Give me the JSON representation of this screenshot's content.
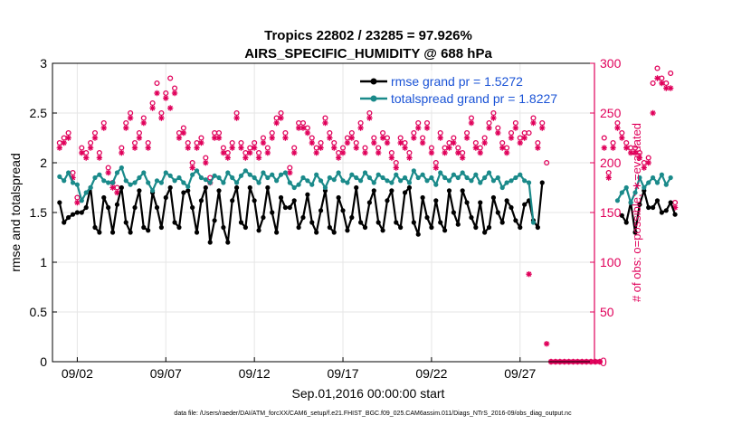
{
  "chart_data": {
    "type": "line",
    "title_line1": "Tropics 22802 / 23285 = 97.926%",
    "title_line2": "AIRS_SPECIFIC_HUMIDITY @ 688 hPa",
    "xlabel": "Sep.01,2016 00:00:00 start",
    "ylabel_left": "rmse and totalspread",
    "ylabel_right": "# of obs: o=possible; ∗=evaluated",
    "ylim_left": [
      0,
      3
    ],
    "ylim_right": [
      0,
      300
    ],
    "xlim": [
      0.6,
      31.2
    ],
    "left_ticks": [
      "0",
      "0.5",
      "1",
      "1.5",
      "2",
      "2.5",
      "3"
    ],
    "left_tick_values": [
      0,
      0.5,
      1,
      1.5,
      2,
      2.5,
      3
    ],
    "right_ticks": [
      "0",
      "50",
      "100",
      "150",
      "200",
      "250",
      "300"
    ],
    "right_tick_values": [
      0,
      50,
      100,
      150,
      200,
      250,
      300
    ],
    "x_ticks": [
      "09/02",
      "09/07",
      "09/12",
      "09/17",
      "09/22",
      "09/27"
    ],
    "x_tick_values": [
      2,
      7,
      12,
      17,
      22,
      27
    ],
    "grid": true,
    "legend": {
      "placement": "top-right",
      "entries": [
        "rmse grand pr = 1.5272",
        "totalspread grand pr = 1.8227"
      ]
    },
    "series": [
      {
        "name": "rmse",
        "color": "#000000",
        "values": [
          1.6,
          1.4,
          1.45,
          1.48,
          1.5,
          1.5,
          1.55,
          1.75,
          1.35,
          1.3,
          1.65,
          1.55,
          1.3,
          1.58,
          1.75,
          1.4,
          1.3,
          1.55,
          1.72,
          1.35,
          1.32,
          1.7,
          1.55,
          1.35,
          1.65,
          1.75,
          1.4,
          1.35,
          1.7,
          1.72,
          1.55,
          1.3,
          1.62,
          1.75,
          1.2,
          1.42,
          1.72,
          1.35,
          1.2,
          1.62,
          1.75,
          1.4,
          1.35,
          1.75,
          1.62,
          1.32,
          1.45,
          1.75,
          1.5,
          1.3,
          1.65,
          1.55,
          1.55,
          1.62,
          1.35,
          1.45,
          1.68,
          1.4,
          1.3,
          1.52,
          1.72,
          1.35,
          1.3,
          1.65,
          1.52,
          1.32,
          1.45,
          1.75,
          1.4,
          1.35,
          1.6,
          1.72,
          1.4,
          1.32,
          1.62,
          1.72,
          1.4,
          1.35,
          1.7,
          1.75,
          1.4,
          1.28,
          1.65,
          1.45,
          1.35,
          1.62,
          1.4,
          1.32,
          1.72,
          1.5,
          1.38,
          1.72,
          1.6,
          1.45,
          1.35,
          1.6,
          1.3,
          1.35,
          1.65,
          1.5,
          1.4,
          1.62,
          1.55,
          1.42,
          1.35,
          1.58,
          1.62,
          1.42,
          1.35,
          1.8,
          null,
          null,
          null,
          null,
          null,
          null,
          null,
          null,
          null,
          null,
          null,
          null,
          null,
          null,
          null,
          null,
          null,
          1.47,
          1.4,
          1.6,
          1.3,
          1.58,
          1.72,
          1.55,
          1.55,
          1.62,
          1.5,
          1.52,
          1.6,
          1.48
        ]
      },
      {
        "name": "totalspread",
        "color": "#1a8a8a",
        "values": [
          1.86,
          1.82,
          1.9,
          1.8,
          1.78,
          1.62,
          1.7,
          1.75,
          1.85,
          1.88,
          1.82,
          1.8,
          1.8,
          1.9,
          1.95,
          1.82,
          1.78,
          1.8,
          1.85,
          1.9,
          1.8,
          1.72,
          1.82,
          1.8,
          1.9,
          1.87,
          1.82,
          1.85,
          1.8,
          1.76,
          1.88,
          1.92,
          1.85,
          1.83,
          1.8,
          1.87,
          1.85,
          1.8,
          1.9,
          1.85,
          1.8,
          1.87,
          1.92,
          1.88,
          1.85,
          1.8,
          1.9,
          1.85,
          1.88,
          1.82,
          1.88,
          1.9,
          1.8,
          1.75,
          1.78,
          1.85,
          1.82,
          1.78,
          1.88,
          1.82,
          1.75,
          1.85,
          1.83,
          1.9,
          1.82,
          1.8,
          1.88,
          1.85,
          1.82,
          1.9,
          1.85,
          1.8,
          1.88,
          1.85,
          1.82,
          1.8,
          1.88,
          1.82,
          1.85,
          1.8,
          1.92,
          1.85,
          1.88,
          1.82,
          1.85,
          1.78,
          1.9,
          1.85,
          1.82,
          1.88,
          1.85,
          1.9,
          1.85,
          1.82,
          1.88,
          1.8,
          1.85,
          1.9,
          1.82,
          1.85,
          1.75,
          1.8,
          1.82,
          1.85,
          1.88,
          1.82,
          1.8,
          1.4,
          null,
          null,
          null,
          null,
          null,
          null,
          null,
          null,
          null,
          null,
          null,
          null,
          null,
          null,
          null,
          null,
          null,
          null,
          1.62,
          1.7,
          1.75,
          1.6,
          1.7,
          1.85,
          1.75,
          1.8,
          1.85,
          1.8,
          1.88,
          1.78,
          1.85
        ]
      }
    ],
    "obs_possible": [
      220,
      225,
      230,
      190,
      165,
      215,
      210,
      220,
      230,
      210,
      240,
      195,
      180,
      175,
      215,
      240,
      250,
      220,
      230,
      245,
      220,
      260,
      280,
      250,
      270,
      285,
      275,
      230,
      235,
      220,
      200,
      220,
      225,
      205,
      185,
      230,
      230,
      215,
      210,
      220,
      250,
      220,
      210,
      215,
      220,
      210,
      225,
      215,
      230,
      245,
      250,
      230,
      195,
      215,
      240,
      240,
      235,
      225,
      215,
      220,
      245,
      230,
      220,
      210,
      215,
      225,
      230,
      220,
      240,
      215,
      250,
      225,
      215,
      230,
      225,
      210,
      200,
      225,
      220,
      210,
      230,
      240,
      225,
      240,
      215,
      200,
      230,
      215,
      220,
      225,
      215,
      210,
      230,
      245,
      220,
      215,
      225,
      240,
      250,
      235,
      220,
      215,
      230,
      240,
      225,
      230,
      230,
      245,
      220,
      240,
      200,
      0,
      0,
      0,
      0,
      0,
      0,
      0,
      0,
      0,
      0,
      0,
      0,
      225,
      190,
      220,
      240,
      230,
      220,
      215,
      215,
      210,
      200,
      205,
      280,
      295,
      285,
      280,
      290,
      160
    ],
    "obs_evaluated": [
      215,
      220,
      225,
      185,
      160,
      210,
      205,
      215,
      225,
      205,
      235,
      190,
      175,
      170,
      210,
      235,
      245,
      215,
      225,
      240,
      215,
      255,
      270,
      245,
      265,
      255,
      270,
      225,
      230,
      215,
      195,
      215,
      220,
      200,
      180,
      225,
      225,
      210,
      205,
      215,
      245,
      215,
      205,
      210,
      215,
      205,
      220,
      210,
      225,
      240,
      245,
      225,
      190,
      210,
      235,
      235,
      230,
      220,
      210,
      215,
      240,
      225,
      215,
      205,
      210,
      220,
      225,
      215,
      235,
      210,
      245,
      220,
      210,
      225,
      220,
      205,
      195,
      220,
      215,
      205,
      225,
      235,
      220,
      235,
      210,
      195,
      225,
      210,
      215,
      220,
      210,
      205,
      225,
      240,
      215,
      210,
      220,
      235,
      245,
      230,
      215,
      210,
      225,
      235,
      220,
      225,
      88,
      240,
      215,
      235,
      18,
      0,
      0,
      0,
      0,
      0,
      0,
      0,
      0,
      0,
      0,
      0,
      0,
      215,
      185,
      215,
      235,
      225,
      215,
      210,
      210,
      205,
      195,
      200,
      250,
      285,
      280,
      275,
      275,
      155
    ]
  },
  "footnote": "data file: /Users/raeder/DAI/ATM_forcXX/CAM6_setup/f.e21.FHIST_BGC.f09_025.CAM6assim.011/Diags_NTrS_2016-09/obs_diag_output.nc"
}
